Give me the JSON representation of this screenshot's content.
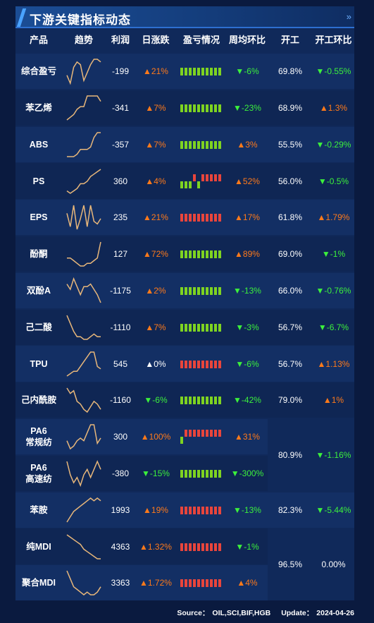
{
  "title": "下游关键指标动态",
  "more_icon": "double-chevron-right-icon",
  "headers": [
    "产品",
    "趋势",
    "利润",
    "日涨跌",
    "盈亏情况",
    "周均环比",
    "开工",
    "开工环比"
  ],
  "colors": {
    "up": "#ff7a1a",
    "down": "#3cf03c",
    "bar_pos": "#7ed321",
    "bar_neg": "#e8453c",
    "spark": "#e8b77a"
  },
  "rows": [
    {
      "product": "综合盈亏",
      "profit": "-199",
      "daily": "▲21%",
      "weekly": "▼-6%",
      "rate": "69.8%",
      "rate_chg": "▼-0.55%",
      "trend": [
        5,
        2,
        8,
        10,
        9,
        3,
        6,
        9,
        11,
        11,
        10
      ],
      "pl": [
        1,
        1,
        1,
        1,
        1,
        1,
        1,
        1,
        1,
        1
      ]
    },
    {
      "product": "苯乙烯",
      "profit": "-341",
      "daily": "▲7%",
      "weekly": "▼-23%",
      "rate": "68.9%",
      "rate_chg": "▲1.3%",
      "trend": [
        1,
        2,
        3,
        5,
        6,
        6,
        10,
        10,
        10,
        10,
        8
      ],
      "pl": [
        1,
        1,
        1,
        1,
        1,
        1,
        1,
        1,
        1,
        1
      ]
    },
    {
      "product": "ABS",
      "profit": "-357",
      "daily": "▲7%",
      "weekly": "▲3%",
      "rate": "55.5%",
      "rate_chg": "▼-0.29%",
      "trend": [
        1,
        1,
        1,
        2,
        4,
        4,
        4,
        5,
        9,
        11,
        11
      ],
      "pl": [
        1,
        1,
        1,
        1,
        1,
        1,
        1,
        1,
        1,
        1
      ]
    },
    {
      "product": "PS",
      "profit": "360",
      "daily": "▲4%",
      "weekly": "▲52%",
      "rate": "56.0%",
      "rate_chg": "▼-0.5%",
      "trend": [
        2,
        1,
        2,
        3,
        5,
        5,
        6,
        8,
        9,
        10,
        11
      ],
      "pl": [
        1,
        1,
        1,
        -1,
        1,
        -1,
        -1,
        -1,
        -1,
        -1
      ]
    },
    {
      "product": "EPS",
      "profit": "235",
      "daily": "▲21%",
      "weekly": "▲17%",
      "rate": "61.8%",
      "rate_chg": "▲1.79%",
      "trend": [
        8,
        3,
        11,
        2,
        6,
        11,
        3,
        11,
        5,
        4,
        6
      ],
      "pl": [
        -1,
        -1,
        -1,
        -1,
        -1,
        -1,
        -1,
        -1,
        -1,
        -1
      ]
    },
    {
      "product": "酚酮",
      "profit": "127",
      "daily": "▲72%",
      "weekly": "▲89%",
      "rate": "69.0%",
      "rate_chg": "▼-1%",
      "trend": [
        5,
        5,
        4,
        3,
        2,
        2,
        3,
        3,
        4,
        5,
        11
      ],
      "pl": [
        1,
        1,
        1,
        1,
        1,
        1,
        1,
        1,
        1,
        1
      ]
    },
    {
      "product": "双酚A",
      "profit": "-1175",
      "daily": "▲2%",
      "weekly": "▼-13%",
      "rate": "66.0%",
      "rate_chg": "▼-0.76%",
      "trend": [
        8,
        6,
        10,
        7,
        4,
        7,
        7,
        8,
        6,
        4,
        1
      ],
      "pl": [
        1,
        1,
        1,
        1,
        1,
        1,
        1,
        1,
        1,
        1
      ]
    },
    {
      "product": "己二酸",
      "profit": "-1110",
      "daily": "▲7%",
      "weekly": "▼-3%",
      "rate": "56.7%",
      "rate_chg": "▼-6.7%",
      "trend": [
        11,
        8,
        5,
        3,
        3,
        2,
        2,
        3,
        4,
        3,
        3
      ],
      "pl": [
        1,
        1,
        1,
        1,
        1,
        1,
        1,
        1,
        1,
        1
      ]
    },
    {
      "product": "TPU",
      "profit": "545",
      "daily": "▲0%",
      "weekly": "▼-6%",
      "rate": "56.7%",
      "rate_chg": "▲1.13%",
      "trend": [
        1,
        2,
        3,
        3,
        5,
        7,
        9,
        11,
        11,
        5,
        4
      ],
      "pl": [
        -1,
        -1,
        -1,
        -1,
        -1,
        -1,
        -1,
        -1,
        -1,
        -1
      ]
    },
    {
      "product": "己内酰胺",
      "profit": "-1160",
      "daily": "▼-6%",
      "weekly": "▼-42%",
      "rate": "79.0%",
      "rate_chg": "▲1%",
      "trend": [
        11,
        9,
        10,
        6,
        5,
        3,
        2,
        4,
        6,
        5,
        3
      ],
      "pl": [
        1,
        1,
        1,
        1,
        1,
        1,
        1,
        1,
        1,
        1
      ]
    },
    {
      "product": "PA6\n常规纺",
      "profit": "300",
      "daily": "▲100%",
      "weekly": "▲31%",
      "trend": [
        5,
        2,
        3,
        5,
        6,
        5,
        8,
        11,
        11,
        4,
        6
      ],
      "pl": [
        1,
        -1,
        -1,
        -1,
        -1,
        -1,
        -1,
        -1,
        -1,
        -1
      ]
    },
    {
      "product": "PA6\n高速纺",
      "profit": "-380",
      "daily": "▼-15%",
      "weekly": "▼-300%",
      "trend": [
        11,
        6,
        3,
        5,
        2,
        6,
        8,
        5,
        8,
        11,
        8
      ],
      "pl": [
        1,
        1,
        1,
        1,
        1,
        1,
        1,
        1,
        1,
        1
      ]
    },
    {
      "product": "苯胺",
      "profit": "1993",
      "daily": "▲19%",
      "weekly": "▼-13%",
      "rate": "82.3%",
      "rate_chg": "▼-5.44%",
      "trend": [
        1,
        3,
        5,
        6,
        7,
        8,
        9,
        10,
        9,
        10,
        9
      ],
      "pl": [
        -1,
        -1,
        -1,
        -1,
        -1,
        -1,
        -1,
        -1,
        -1,
        -1
      ]
    },
    {
      "product": "纯MDI",
      "profit": "4363",
      "daily": "▲1.32%",
      "weekly": "▼-1%",
      "trend": [
        11,
        10,
        9,
        8,
        7,
        5,
        4,
        3,
        2,
        1,
        1
      ],
      "pl": [
        -1,
        -1,
        -1,
        -1,
        -1,
        -1,
        -1,
        -1,
        -1,
        -1
      ]
    },
    {
      "product": "聚合MDI",
      "profit": "3363",
      "daily": "▲1.72%",
      "weekly": "▲4%",
      "trend": [
        11,
        8,
        5,
        4,
        3,
        2,
        3,
        2,
        2,
        3,
        5
      ],
      "pl": [
        -1,
        -1,
        -1,
        -1,
        -1,
        -1,
        -1,
        -1,
        -1,
        -1
      ]
    }
  ],
  "merged": [
    {
      "rows": [
        10,
        11
      ],
      "rate": "80.9%",
      "rate_chg": "▼-1.16%"
    },
    {
      "rows": [
        13,
        14
      ],
      "rate": "96.5%",
      "rate_chg": "0.00%"
    }
  ],
  "footer": {
    "source_label": "Source：",
    "source": "OIL,SCI,BIF,HGB",
    "update_label": "Update：",
    "update": "2024-04-26"
  }
}
